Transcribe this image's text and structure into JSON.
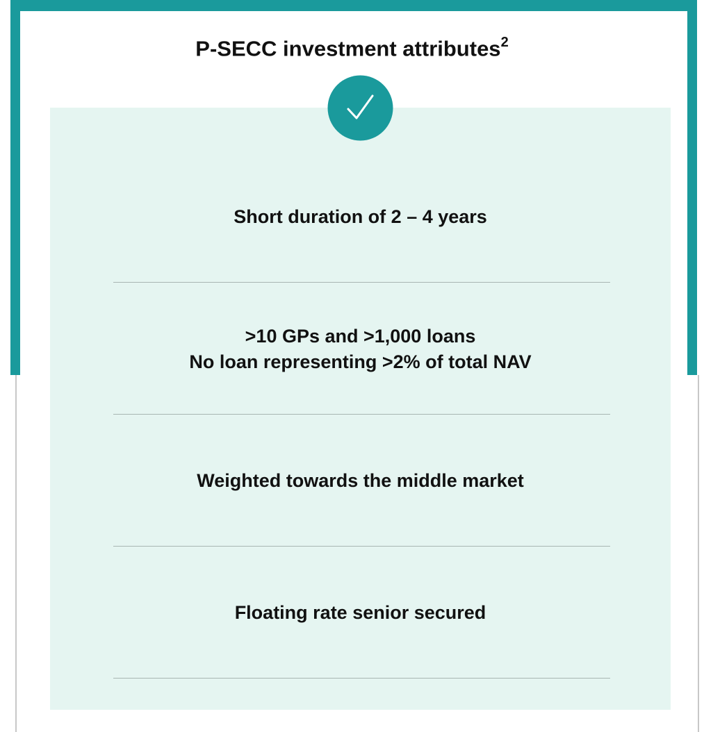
{
  "header": {
    "title": "P-SECC investment attributes",
    "superscript": "2"
  },
  "items": [
    [
      "Short duration of 2 – 4 years"
    ],
    [
      ">10 GPs and >1,000 loans",
      "No loan representing >2% of total NAV"
    ],
    [
      "Weighted towards the middle market"
    ],
    [
      "Floating rate senior secured"
    ]
  ]
}
